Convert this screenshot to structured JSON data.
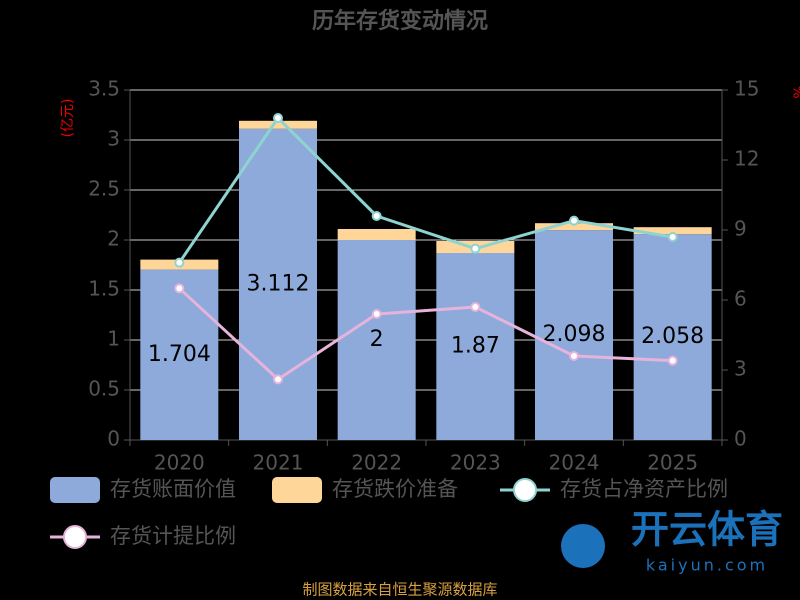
{
  "chart_data": {
    "type": "bar-line",
    "title": "历年存货变动情况",
    "y_label": "(亿元)",
    "y2_label": "%",
    "categories": [
      "2020",
      "2021",
      "2022",
      "2023",
      "2024",
      "2025"
    ],
    "series": [
      {
        "name": "存货账面价值",
        "type": "bar",
        "color": "#8eaadb",
        "values": [
          1.704,
          3.112,
          2,
          1.87,
          2.098,
          2.058
        ],
        "show_labels": true
      },
      {
        "name": "存货跌价准备",
        "type": "bar",
        "color": "#ffd699",
        "values": [
          0.1,
          0.08,
          0.11,
          0.12,
          0.07,
          0.07
        ]
      },
      {
        "name": "存货占净资产比例",
        "type": "line",
        "axis": "y2",
        "color": "#8fd3d1",
        "values": [
          7.6,
          13.8,
          9.6,
          8.2,
          9.4,
          8.7
        ]
      },
      {
        "name": "存货计提比例",
        "type": "line",
        "axis": "y2",
        "color": "#e6b3db",
        "values": [
          6.5,
          2.6,
          5.4,
          5.7,
          3.6,
          3.4
        ]
      }
    ],
    "ylim": [
      0,
      3.5
    ],
    "yticks": [
      0,
      0.5,
      1,
      1.5,
      2,
      2.5,
      3,
      3.5
    ],
    "y2lim": [
      0,
      15
    ],
    "y2ticks": [
      0,
      3,
      6,
      9,
      12,
      15
    ],
    "grid": true,
    "source": "制图数据来自恒生聚源数据库",
    "watermark": {
      "brand": "开云体育",
      "url": "kaiyun.com"
    }
  }
}
